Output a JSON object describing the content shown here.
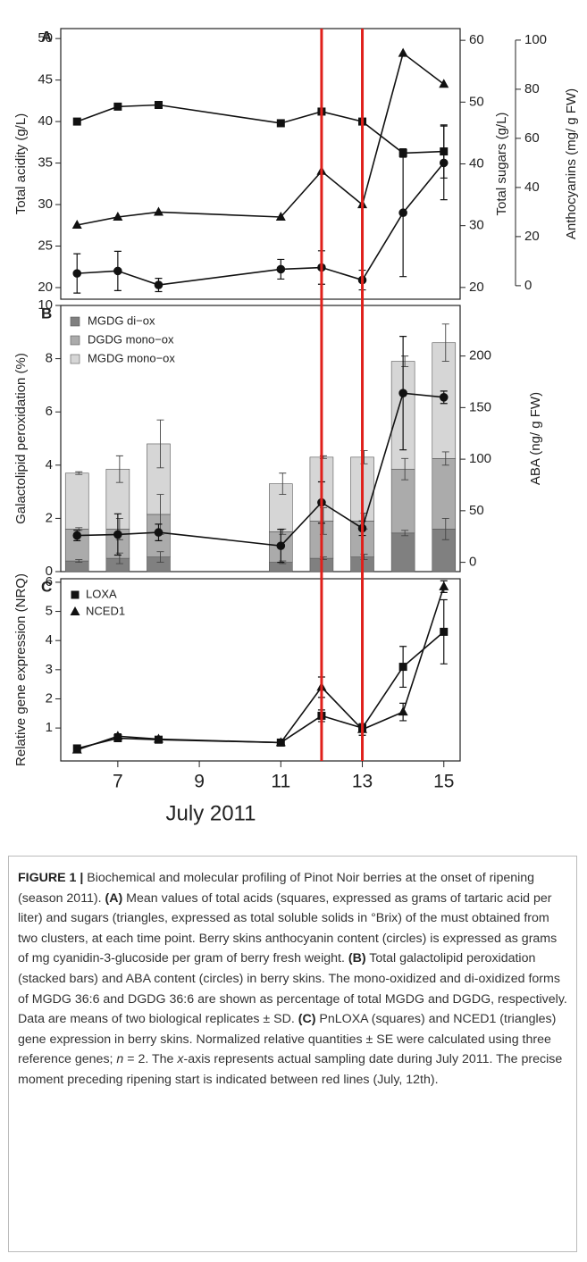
{
  "chart_data": [
    {
      "label": "A",
      "type": "line",
      "xlim": [
        5.6,
        15.4
      ],
      "x": [
        6,
        7,
        8,
        11,
        12,
        13,
        14,
        15
      ],
      "ylabel": "Total acidity (g/L)",
      "ylim": [
        18.6,
        51.2
      ],
      "yticks": [
        20,
        25,
        30,
        35,
        40,
        45,
        50
      ],
      "y2label": "Total sugars (g/L)",
      "y2lim": [
        18.1,
        61.9
      ],
      "y2ticks": [
        20,
        30,
        40,
        50,
        60
      ],
      "y3label": "Anthocyanins (mg/ g FW)",
      "y3lim": [
        -5.5,
        104.7
      ],
      "y3ticks": [
        0,
        20,
        40,
        60,
        80,
        100
      ],
      "series": [
        {
          "marker": "square",
          "axis": "y",
          "color": "#111111",
          "values": [
            40,
            41.8,
            42,
            39.8,
            41.2,
            40,
            36.2,
            36.4
          ],
          "errors": [
            0,
            0,
            0,
            0,
            0,
            0,
            0.5,
            3.2
          ]
        },
        {
          "marker": "triangle",
          "axis": "y2",
          "color": "#111111",
          "values": [
            30.1,
            31.4,
            32.2,
            31.4,
            38.8,
            33.4,
            57.9,
            52.9
          ]
        },
        {
          "marker": "circle",
          "axis": "y3",
          "color": "#111111",
          "values": [
            5,
            6,
            0.3,
            6.7,
            7.4,
            2.3,
            29.7,
            50
          ],
          "errors": [
            8,
            8,
            2.7,
            4,
            6.8,
            4,
            26,
            15
          ]
        }
      ]
    },
    {
      "label": "B",
      "type": "stacked_bar",
      "xlim": [
        5.6,
        15.4
      ],
      "x": [
        6,
        7,
        8,
        11,
        12,
        13,
        14,
        15
      ],
      "ylabel": "Galactolipid peroxidation (%)",
      "ylim": [
        0,
        10
      ],
      "yticks": [
        0,
        2,
        4,
        6,
        8,
        10
      ],
      "y2label": "ABA (ng/ g FW)",
      "y2lim": [
        -9,
        249
      ],
      "y2ticks": [
        0,
        50,
        100,
        150,
        200
      ],
      "legend": "upper left",
      "series": [
        {
          "name": "MGDG di−ox",
          "color": "#808080",
          "values": [
            0.4,
            0.5,
            0.55,
            0.35,
            0.5,
            0.55,
            1.45,
            1.6
          ],
          "errors": [
            0.05,
            0.2,
            0.2,
            0.05,
            0.05,
            0.1,
            0.1,
            0.4
          ]
        },
        {
          "name": "DGDG mono−ox",
          "color": "#ababab",
          "values": [
            1.2,
            1.1,
            1.6,
            1.15,
            1.4,
            1.35,
            2.4,
            2.65
          ],
          "errors": [
            0.05,
            0.4,
            0.75,
            0.1,
            0.5,
            0.3,
            0.4,
            0.25
          ]
        },
        {
          "name": "MGDG mono−ox",
          "color": "#d6d6d6",
          "values": [
            2.1,
            2.25,
            2.65,
            1.8,
            2.4,
            2.4,
            4.05,
            4.35
          ],
          "errors": [
            0.05,
            0.5,
            0.9,
            0.4,
            0.05,
            0.25,
            0.2,
            0.7
          ]
        }
      ],
      "overlay": {
        "marker": "circle",
        "axis": "y2",
        "color": "#111111",
        "values": [
          26,
          27,
          29,
          16,
          58,
          33,
          164,
          160
        ],
        "errors": [
          5,
          20,
          8,
          16,
          20,
          7,
          55,
          6
        ]
      }
    },
    {
      "label": "C",
      "type": "line",
      "xlim": [
        5.6,
        15.4
      ],
      "x": [
        6,
        7,
        8,
        11,
        12,
        13,
        14,
        15
      ],
      "xticks": [
        7,
        9,
        11,
        13,
        15
      ],
      "xlabel": "July 2011",
      "ylabel": "Relative gene expression (NRQ)",
      "ylim": [
        -0.13,
        6.12
      ],
      "yticks": [
        1,
        2,
        3,
        4,
        5,
        6
      ],
      "legend": "upper left",
      "series": [
        {
          "name": "LOXA",
          "marker": "square",
          "axis": "y",
          "color": "#111111",
          "values": [
            0.3,
            0.65,
            0.6,
            0.5,
            1.42,
            1.0,
            3.1,
            4.3
          ],
          "errors": [
            0.05,
            0.08,
            0.05,
            0.03,
            0.2,
            0.1,
            0.7,
            1.1
          ]
        },
        {
          "name": "NCED1",
          "marker": "triangle",
          "axis": "y",
          "color": "#111111",
          "values": [
            0.25,
            0.72,
            0.62,
            0.5,
            2.4,
            0.95,
            1.55,
            5.85
          ],
          "errors": [
            0.05,
            0.08,
            0.05,
            0.03,
            0.35,
            0.2,
            0.3,
            0.2
          ]
        }
      ]
    }
  ],
  "reference_lines": {
    "x": [
      12,
      13
    ],
    "color": "#e0201b"
  },
  "caption": [
    {
      "text": "FIGURE 1 |",
      "bold": true
    },
    {
      "text": " Biochemical and molecular profiling of Pinot Noir berries at the onset of ripening (season 2011). "
    },
    {
      "text": "(A)",
      "bold": true
    },
    {
      "text": " Mean values of total acids (squares, expressed as grams of tartaric acid per liter) and sugars (triangles, expressed as total soluble solids in °Brix) of the must obtained from two clusters, at each time point. Berry skins anthocyanin content (circles) is expressed as grams of mg cyanidin-3-glucoside per gram of berry fresh weight. "
    },
    {
      "text": "(B)",
      "bold": true
    },
    {
      "text": " Total galactolipid peroxidation (stacked bars) and ABA content (circles) in berry skins. The mono-oxidized and di-oxidized forms of MGDG 36:6 and DGDG 36:6 are shown as percentage of total MGDG and DGDG, respectively. Data are means of two biological replicates ± SD. "
    },
    {
      "text": "(C)",
      "bold": true
    },
    {
      "text": " PnLOXA (squares) and NCED1 (triangles) gene expression in berry skins. Normalized relative quantities ± SE were calculated using three reference genes; "
    },
    {
      "text": "n",
      "italic": true
    },
    {
      "text": " = 2. The "
    },
    {
      "text": "x",
      "italic": true
    },
    {
      "text": "-axis represents actual sampling date during July 2011. The precise moment preceding ripening start is indicated between red lines (July, 12th)."
    }
  ]
}
